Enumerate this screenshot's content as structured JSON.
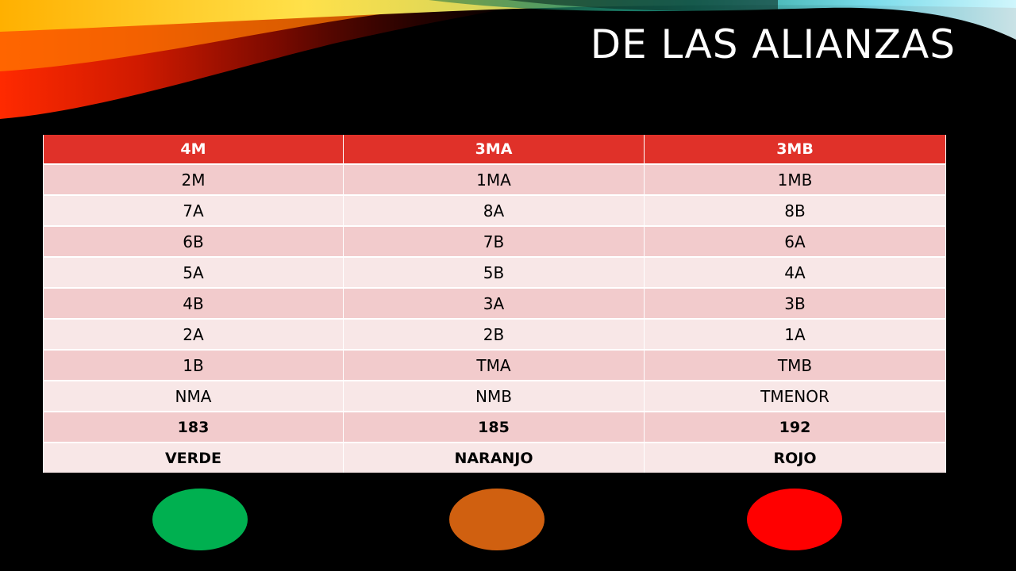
{
  "slide": {
    "title": "DE LAS  ALIANZAS"
  },
  "table": {
    "headers": [
      "4M",
      "3MA",
      "3MB"
    ],
    "rows": [
      [
        "2M",
        "1MA",
        "1MB"
      ],
      [
        "7A",
        "8A",
        "8B"
      ],
      [
        "6B",
        "7B",
        "6A"
      ],
      [
        "5A",
        "5B",
        "4A"
      ],
      [
        "4B",
        "3A",
        "3B"
      ],
      [
        "2A",
        "2B",
        "1A"
      ],
      [
        "1B",
        "TMA",
        "TMB"
      ],
      [
        "NMA",
        "NMB",
        "TMENOR"
      ],
      [
        "183",
        "185",
        "192"
      ],
      [
        "VERDE",
        "NARANJO",
        "ROJO"
      ]
    ]
  },
  "colors": {
    "header_bg": "#e03129",
    "row_odd": "#f2cbcc",
    "row_even": "#f8e7e7",
    "verde": "#00b050",
    "naranjo": "#d06010",
    "rojo": "#ff0000"
  }
}
